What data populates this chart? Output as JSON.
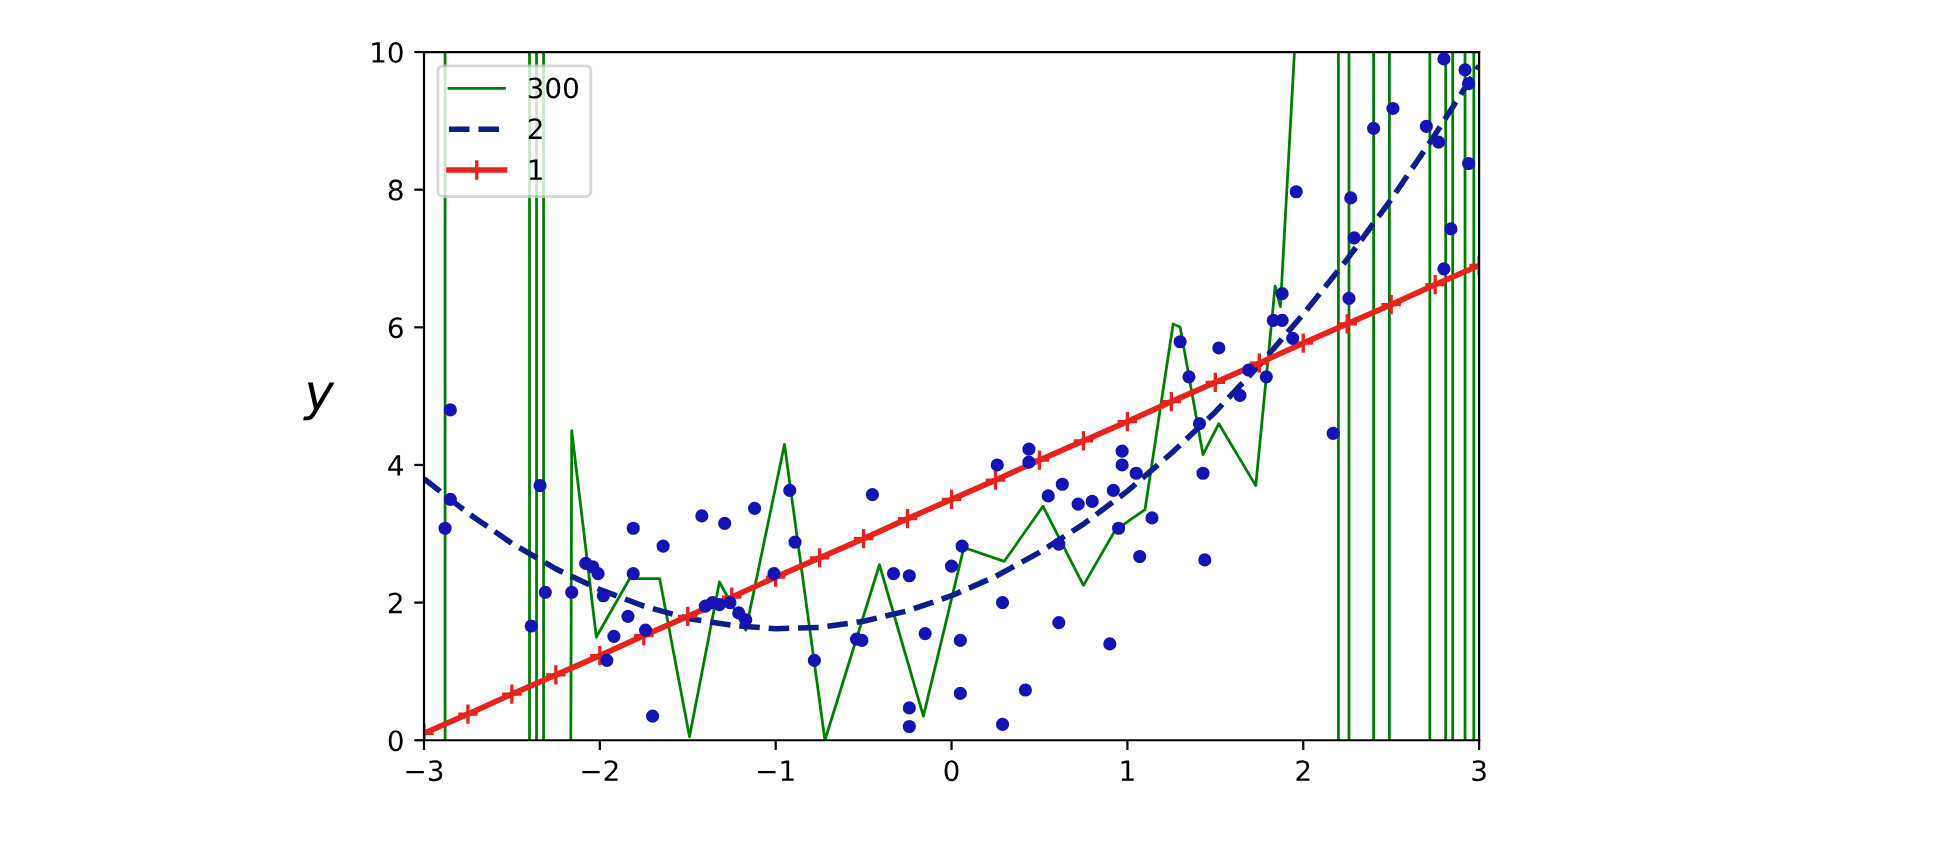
{
  "chart_data": {
    "type": "line",
    "ylabel": "y",
    "xlim": [
      -3,
      3
    ],
    "ylim": [
      0,
      10
    ],
    "xticks": [
      -3,
      -2,
      -1,
      0,
      1,
      2,
      3
    ],
    "yticks": [
      0,
      2,
      4,
      6,
      8,
      10
    ],
    "grid": false,
    "legend": "top left",
    "series": [
      {
        "type": "scatter",
        "color": "#1414b4",
        "marker": "circle",
        "x": [
          -2.85,
          -2.85,
          -2.88,
          -2.39,
          -2.34,
          -2.31,
          -2.16,
          -2.08,
          -2.04,
          -2.01,
          -1.98,
          -1.96,
          -1.92,
          -1.81,
          -1.81,
          -1.84,
          -1.74,
          -1.7,
          -1.64,
          -1.42,
          -1.4,
          -1.29,
          -1.36,
          -1.32,
          -1.26,
          -1.21,
          -1.17,
          -1.12,
          -1.01,
          -0.92,
          -0.89,
          -0.78,
          -0.54,
          -0.51,
          -0.45,
          -0.33,
          -0.24,
          -0.24,
          -0.24,
          -0.15,
          0.0,
          0.06,
          0.05,
          0.05,
          0.26,
          0.29,
          0.29,
          0.42,
          0.44,
          0.44,
          0.55,
          0.61,
          0.63,
          0.61,
          0.72,
          0.8,
          0.9,
          0.92,
          0.95,
          0.97,
          0.97,
          1.07,
          1.14,
          1.05,
          1.3,
          1.35,
          1.52,
          1.41,
          1.43,
          1.44,
          1.64,
          1.69,
          1.79,
          1.83,
          1.88,
          1.88,
          1.94,
          1.96,
          2.17,
          2.27,
          2.29,
          2.26,
          2.4,
          2.51,
          2.7,
          2.77,
          2.84,
          2.8,
          2.92,
          2.94,
          2.94,
          2.8
        ],
        "values": [
          4.8,
          3.5,
          3.08,
          1.66,
          3.7,
          2.15,
          2.15,
          2.57,
          2.52,
          2.42,
          2.1,
          1.16,
          1.51,
          3.08,
          2.42,
          1.8,
          1.6,
          0.35,
          2.82,
          3.26,
          1.95,
          3.15,
          2.0,
          1.97,
          2.0,
          1.85,
          1.75,
          3.37,
          2.42,
          3.63,
          2.88,
          1.16,
          1.47,
          1.45,
          3.57,
          2.42,
          2.39,
          0.47,
          0.2,
          1.55,
          2.53,
          2.82,
          1.45,
          0.68,
          4.0,
          2.0,
          0.23,
          0.73,
          4.23,
          4.04,
          3.55,
          2.85,
          3.72,
          1.71,
          3.43,
          3.47,
          1.4,
          3.63,
          3.08,
          4.2,
          4.0,
          2.67,
          3.23,
          3.88,
          5.79,
          5.28,
          5.7,
          4.6,
          3.88,
          2.62,
          5.01,
          5.38,
          5.28,
          6.1,
          6.1,
          6.49,
          5.84,
          7.97,
          4.46,
          7.88,
          7.3,
          6.42,
          8.89,
          9.18,
          8.92,
          8.69,
          7.43,
          6.85,
          9.74,
          9.54,
          8.38,
          9.9
        ]
      },
      {
        "name": "300",
        "color": "#008000",
        "marker": "none",
        "line_style": "solid",
        "x": [
          -2.88,
          -2.88,
          -2.6,
          -2.4,
          -2.4,
          -2.38,
          -2.36,
          -2.36,
          -2.34,
          -2.32,
          -2.32,
          -2.24,
          -2.165,
          -2.16,
          -2.02,
          -1.83,
          -1.66,
          -1.49,
          -1.32,
          -1.17,
          -0.95,
          -0.72,
          -0.41,
          -0.16,
          0.07,
          0.3,
          0.52,
          0.75,
          0.93,
          1.1,
          1.26,
          1.3,
          1.43,
          1.52,
          1.73,
          1.84,
          1.87,
          1.95,
          2.08,
          2.2,
          2.2,
          2.23,
          2.26,
          2.26,
          2.33,
          2.4,
          2.4,
          2.45,
          2.49,
          2.49,
          2.6,
          2.72,
          2.72,
          2.77,
          2.81,
          2.81,
          2.83,
          2.85,
          2.85,
          2.89,
          2.92,
          2.92,
          2.95,
          2.97,
          2.97
        ],
        "values": [
          0,
          10,
          null,
          0,
          10,
          null,
          10,
          0,
          null,
          0,
          10,
          null,
          0,
          4.5,
          1.5,
          2.35,
          2.35,
          0.05,
          2.3,
          1.6,
          4.3,
          0,
          2.55,
          0.35,
          2.8,
          2.6,
          3.4,
          2.25,
          3.05,
          3.35,
          6.05,
          6.0,
          4.15,
          4.6,
          3.7,
          6.6,
          6.3,
          10,
          null,
          10,
          0,
          null,
          0,
          10,
          null,
          10,
          0,
          null,
          0,
          10,
          null,
          10,
          0,
          null,
          0,
          10,
          null,
          10,
          0,
          null,
          0,
          10,
          null,
          10,
          0
        ]
      },
      {
        "name": "2",
        "color": "#0c1e8c",
        "marker": "none",
        "line_style": "dashed",
        "x": [
          -3,
          -2.75,
          -2.5,
          -2.25,
          -2,
          -1.75,
          -1.5,
          -1.25,
          -1,
          -0.75,
          -0.5,
          -0.25,
          0,
          0.25,
          0.5,
          0.75,
          1,
          1.25,
          1.5,
          1.75,
          2,
          2.25,
          2.5,
          2.75,
          3
        ],
        "values": [
          3.8,
          3.3,
          2.86,
          2.49,
          2.19,
          1.95,
          1.77,
          1.67,
          1.62,
          1.64,
          1.73,
          1.88,
          2.1,
          2.38,
          2.73,
          3.14,
          3.62,
          4.17,
          4.77,
          5.45,
          6.19,
          6.99,
          7.86,
          8.8,
          9.8
        ]
      },
      {
        "name": "1",
        "color": "#e8231e",
        "marker": "cross",
        "line_style": "solid",
        "x": [
          -3,
          -2.75,
          -2.5,
          -2.25,
          -2,
          -1.75,
          -1.5,
          -1.25,
          -1,
          -0.75,
          -0.5,
          -0.25,
          0,
          0.25,
          0.5,
          0.75,
          1,
          1.25,
          1.5,
          1.75,
          2,
          2.25,
          2.5,
          2.75,
          3
        ],
        "values": [
          0.1,
          0.38,
          0.67,
          0.95,
          1.23,
          1.52,
          1.8,
          2.08,
          2.37,
          2.65,
          2.93,
          3.22,
          3.5,
          3.78,
          4.07,
          4.35,
          4.63,
          4.92,
          5.2,
          5.48,
          5.77,
          6.05,
          6.33,
          6.62,
          6.9
        ]
      }
    ]
  }
}
